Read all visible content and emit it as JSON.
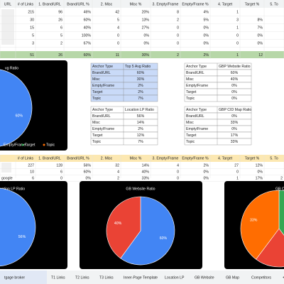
{
  "sheet": {
    "col_header": [
      "URL",
      "# of Links",
      "1. Brand/URL",
      "Brand/URL %",
      "2. Misc",
      "Misc %",
      "3. Empty/Frame",
      "Empty/Frame %",
      "4. Target",
      "Target %",
      "5. To"
    ],
    "rows": [
      [
        "215",
        "96",
        "46%",
        "42",
        "20%",
        "8",
        "4%",
        "1",
        ""
      ],
      [
        "30",
        "26",
        "60%",
        "5",
        "13%",
        "2",
        "5%",
        "3",
        "8%"
      ],
      [
        "15",
        "6",
        "40%",
        "4",
        "27%",
        "0",
        "0%",
        "1",
        "7%"
      ],
      [
        "5",
        "5",
        "100%",
        "0",
        "0%",
        "0",
        "0%",
        "0",
        "0%"
      ],
      [
        "3",
        "2",
        "67%",
        "0",
        "0%",
        "0",
        "0%",
        "0",
        "0%"
      ]
    ],
    "total": [
      "51",
      "26",
      "60%",
      "11",
      "30%",
      "2",
      "2%",
      "1",
      "12"
    ],
    "tables": [
      {
        "header": [
          "Anchor Type",
          "Top 5 Avg Ratio"
        ],
        "rows": [
          [
            "Brand/URL",
            "60%"
          ],
          [
            "Misc",
            "30%"
          ],
          [
            "Empty/Frame",
            "2%"
          ],
          [
            "Target",
            "2%"
          ],
          [
            "Topic",
            "7%"
          ]
        ]
      },
      {
        "header": [
          "Anchor Type",
          "GBP Website Ratio"
        ],
        "rows": [
          [
            "Brand/URL",
            "60%"
          ],
          [
            "Misc",
            "40%"
          ],
          [
            "Empty/Frame",
            "0%"
          ],
          [
            "Target",
            "0%"
          ],
          [
            "Topic",
            "0%"
          ]
        ]
      },
      {
        "header": [
          "Anchor Type",
          "Location LP Ratio"
        ],
        "rows": [
          [
            "Brand/URL",
            "56%"
          ],
          [
            "Misc",
            "14%"
          ],
          [
            "Empty/Frame",
            "2%"
          ],
          [
            "Target",
            "12%"
          ],
          [
            "Topic",
            "7%"
          ]
        ]
      },
      {
        "header": [
          "Anchor Type",
          "GBP CID Map Ratio"
        ],
        "rows": [
          [
            "Brand/URL",
            "0%"
          ],
          [
            "Misc",
            "33%"
          ],
          [
            "Empty/Frame",
            "0%"
          ],
          [
            "Target",
            "17%"
          ],
          [
            "Topic",
            "33%"
          ]
        ]
      }
    ],
    "header2": [
      "# of Links",
      "1. Brand/URL",
      "Brand/URL %",
      "2. Misc",
      "Misc %",
      "3. Empty/Frame",
      "Empty/Frame %",
      "4. Target",
      "Target %",
      "5. To"
    ],
    "rows2": [
      [
        "227",
        "128",
        "56%",
        "32",
        "14%",
        "4",
        "2%",
        "27",
        "12%"
      ],
      [
        "10",
        "6",
        "60%",
        "4",
        "40%",
        "0",
        "0%",
        "0",
        "0%"
      ],
      [
        "google",
        "6",
        "0",
        "0%",
        "2",
        "33%",
        "0",
        "0%",
        "1",
        "17%",
        "2"
      ]
    ],
    "charts": [
      {
        "type": "pie",
        "title": "vg Ratio",
        "values": [
          60,
          30,
          2,
          2,
          7
        ],
        "colors": [
          "#4285f4",
          "#ea4335",
          "#fbbc04",
          "#34a853",
          "#ff6d01"
        ],
        "value_labels": [
          "60%",
          null,
          null,
          null,
          null
        ],
        "legend": [
          "Empty/Frame",
          "Target",
          "Topic"
        ]
      },
      {
        "type": "pie",
        "title": "cation LP Ratio",
        "values": [
          56,
          14,
          2,
          12,
          7
        ],
        "colors": [
          "#4285f4",
          "#ea4335",
          "#fbbc04",
          "#34a853",
          "#ff6d01"
        ],
        "value_labels": [
          "56%",
          null,
          null,
          null,
          null
        ]
      },
      {
        "type": "pie",
        "title": "GB Website Ratio",
        "values": [
          60,
          40,
          0,
          0,
          0
        ],
        "colors": [
          "#4285f4",
          "#ea4335",
          "#fbbc04",
          "#34a853",
          "#ff6d01"
        ],
        "value_labels": [
          "60%",
          "40%",
          null,
          null,
          null
        ]
      },
      {
        "type": "pie",
        "title": "GB CID",
        "values": [
          0,
          33,
          0,
          17,
          33
        ],
        "colors": [
          "#4285f4",
          "#34a853",
          "#fbbc04",
          "#ea4335",
          "#ff6d01"
        ],
        "value_labels": [
          null,
          "33%",
          null,
          null,
          "33%"
        ]
      }
    ],
    "tabs": [
      "tgage broker",
      "T1 Links",
      "T2 Links",
      "T3 Links",
      "Inner-Page Template",
      "Location LP",
      "GB Website",
      "GB Map",
      "Competitors",
      "+"
    ]
  }
}
